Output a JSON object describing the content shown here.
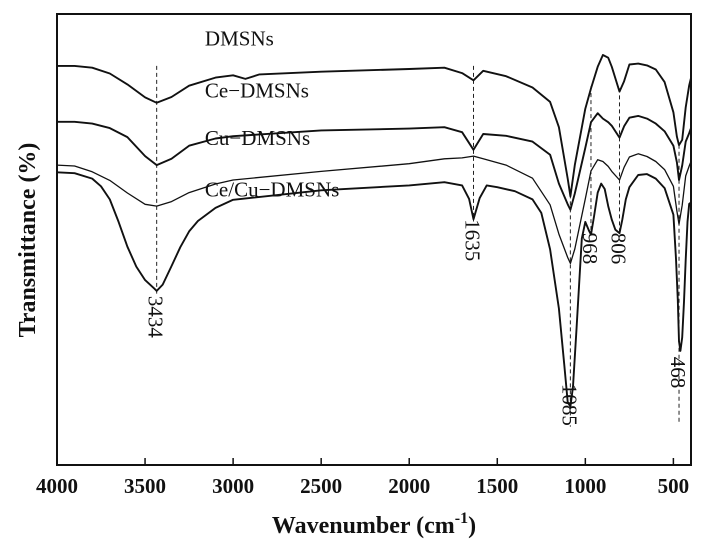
{
  "chart_data": {
    "type": "line",
    "title": "",
    "xlabel": "Wavenumber (cm",
    "xlabel_sup": "-1",
    "xlabel_close": ")",
    "ylabel": "Transmittance (%)",
    "xlim": [
      4000,
      400
    ],
    "x_reversed": true,
    "y_ticks_shown": false,
    "grid": false,
    "legend": "none",
    "xticks": [
      4000,
      3500,
      3000,
      2500,
      2000,
      1500,
      1000,
      500
    ],
    "y_note": "y values are relative transmittance in arbitrary units (0 = bottom of plot area, 100 = top)",
    "series": [
      {
        "name": "DMSNs",
        "x": [
          4000,
          3900,
          3800,
          3700,
          3600,
          3500,
          3434,
          3350,
          3250,
          3100,
          3000,
          2930,
          2850,
          2500,
          2000,
          1800,
          1700,
          1635,
          1580,
          1450,
          1300,
          1200,
          1150,
          1100,
          1085,
          1060,
          1000,
          968,
          930,
          900,
          870,
          850,
          806,
          780,
          750,
          700,
          650,
          600,
          550,
          500,
          480,
          468,
          450,
          430,
          410,
          400
        ],
        "y": [
          88.5,
          88.5,
          88.1,
          86.8,
          84.4,
          81.5,
          80.3,
          81.6,
          84.1,
          85.9,
          86.4,
          85.6,
          86.6,
          87.2,
          87.8,
          88.1,
          86.9,
          85.3,
          87.4,
          86.2,
          83.7,
          80.5,
          74.9,
          63.5,
          59.6,
          66.5,
          79.0,
          83.5,
          88.3,
          90.9,
          90.3,
          88.3,
          82.8,
          85.1,
          88.8,
          89.0,
          88.6,
          87.7,
          84.9,
          78.2,
          72.8,
          70.9,
          72.1,
          79.3,
          84.2,
          85.8
        ]
      },
      {
        "name": "Ce−DMSNs",
        "x": [
          4000,
          3900,
          3800,
          3700,
          3600,
          3500,
          3434,
          3350,
          3250,
          3100,
          3000,
          2500,
          2000,
          1800,
          1700,
          1635,
          1580,
          1450,
          1300,
          1200,
          1150,
          1100,
          1085,
          1060,
          1000,
          968,
          930,
          900,
          870,
          850,
          806,
          780,
          750,
          700,
          650,
          600,
          550,
          500,
          480,
          468,
          450,
          430,
          410,
          400
        ],
        "y": [
          76.1,
          76.1,
          75.7,
          74.7,
          72.7,
          68.5,
          66.5,
          67.9,
          70.8,
          72.4,
          72.9,
          74.2,
          74.6,
          74.9,
          73.8,
          69.9,
          73.4,
          73.0,
          71.7,
          68.8,
          62.4,
          57.8,
          56.6,
          60.2,
          70.3,
          76.0,
          78.0,
          76.8,
          76.0,
          75.2,
          72.6,
          75.1,
          77.0,
          77.4,
          76.8,
          75.7,
          74.0,
          70.8,
          67.1,
          63.2,
          66.4,
          71.7,
          73.6,
          74.7
        ]
      },
      {
        "name": "Cu−DMSNs",
        "x": [
          4000,
          3900,
          3800,
          3700,
          3600,
          3500,
          3434,
          3350,
          3250,
          3100,
          3000,
          2500,
          2000,
          1800,
          1700,
          1635,
          1580,
          1450,
          1300,
          1200,
          1150,
          1100,
          1085,
          1060,
          1000,
          968,
          930,
          900,
          870,
          850,
          806,
          780,
          750,
          700,
          650,
          600,
          550,
          500,
          480,
          468,
          450,
          430,
          410,
          400
        ],
        "y": [
          66.5,
          66.3,
          65.0,
          63.1,
          60.3,
          57.8,
          57.4,
          58.4,
          60.4,
          62.3,
          63.2,
          65.1,
          66.8,
          67.9,
          68.1,
          68.5,
          67.9,
          66.5,
          63.6,
          57.7,
          51.2,
          46.0,
          44.7,
          47.9,
          59.0,
          65.2,
          67.7,
          67.3,
          66.2,
          65.1,
          63.2,
          66.0,
          68.3,
          69.0,
          68.4,
          67.3,
          65.5,
          61.8,
          56.3,
          53.4,
          57.6,
          64.1,
          66.3,
          67.3
        ]
      },
      {
        "name": "Ce/Cu−DMSNs",
        "x": [
          4000,
          3900,
          3800,
          3750,
          3700,
          3650,
          3600,
          3550,
          3500,
          3450,
          3434,
          3400,
          3350,
          3300,
          3250,
          3200,
          3100,
          3000,
          2500,
          2000,
          1800,
          1700,
          1660,
          1635,
          1600,
          1560,
          1500,
          1400,
          1300,
          1250,
          1200,
          1150,
          1120,
          1100,
          1085,
          1070,
          1050,
          1020,
          1000,
          980,
          968,
          950,
          930,
          910,
          890,
          870,
          850,
          830,
          806,
          790,
          770,
          750,
          700,
          650,
          600,
          550,
          500,
          485,
          475,
          468,
          460,
          450,
          440,
          430,
          420,
          410,
          400
        ],
        "y": [
          64.9,
          64.7,
          63.5,
          61.8,
          58.9,
          53.9,
          48.4,
          44.0,
          41.0,
          39.2,
          38.6,
          40.0,
          44.1,
          48.3,
          51.8,
          54.1,
          57.0,
          58.8,
          60.9,
          62.0,
          62.7,
          62.0,
          59.0,
          54.5,
          59.2,
          62.0,
          61.6,
          60.7,
          58.9,
          55.9,
          47.8,
          34.7,
          22.4,
          14.0,
          12.9,
          17.4,
          30.1,
          50.2,
          53.9,
          52.0,
          51.1,
          55.2,
          60.4,
          62.4,
          61.2,
          57.4,
          54.4,
          52.2,
          51.4,
          54.4,
          58.9,
          61.6,
          64.3,
          64.5,
          63.5,
          61.4,
          55.5,
          45.7,
          36.6,
          27.4,
          25.3,
          28.3,
          36.2,
          45.5,
          53.9,
          57.9,
          58.2
        ]
      }
    ],
    "series_labels": [
      {
        "text": "DMSNs",
        "x": 3160,
        "y": 93.0
      },
      {
        "text": "Ce−DMSNs",
        "x": 3160,
        "y": 81.5
      },
      {
        "text": "Cu−DMSNs",
        "x": 3160,
        "y": 71.0
      },
      {
        "text": "Ce/Cu−DMSNs",
        "x": 3160,
        "y": 59.5
      }
    ],
    "annotations": [
      {
        "text": "3434",
        "x": 3434,
        "y_top": 88.5,
        "y_bottom": 38.0,
        "label_y": 37.5
      },
      {
        "text": "1635",
        "x": 1635,
        "y_top": 88.5,
        "y_bottom": 54.0,
        "label_y": 54.5
      },
      {
        "text": "1085",
        "x": 1085,
        "y_top": 60.0,
        "y_bottom": 8.5,
        "label_y": 18.0
      },
      {
        "text": "968",
        "x": 968,
        "y_top": 84.0,
        "y_bottom": 51.0,
        "label_y": 51.5
      },
      {
        "text": "806",
        "x": 806,
        "y_top": 83.5,
        "y_bottom": 51.0,
        "label_y": 51.5
      },
      {
        "text": "468",
        "x": 468,
        "y_top": 71.0,
        "y_bottom": 9.0,
        "label_y": 24.0
      }
    ]
  }
}
